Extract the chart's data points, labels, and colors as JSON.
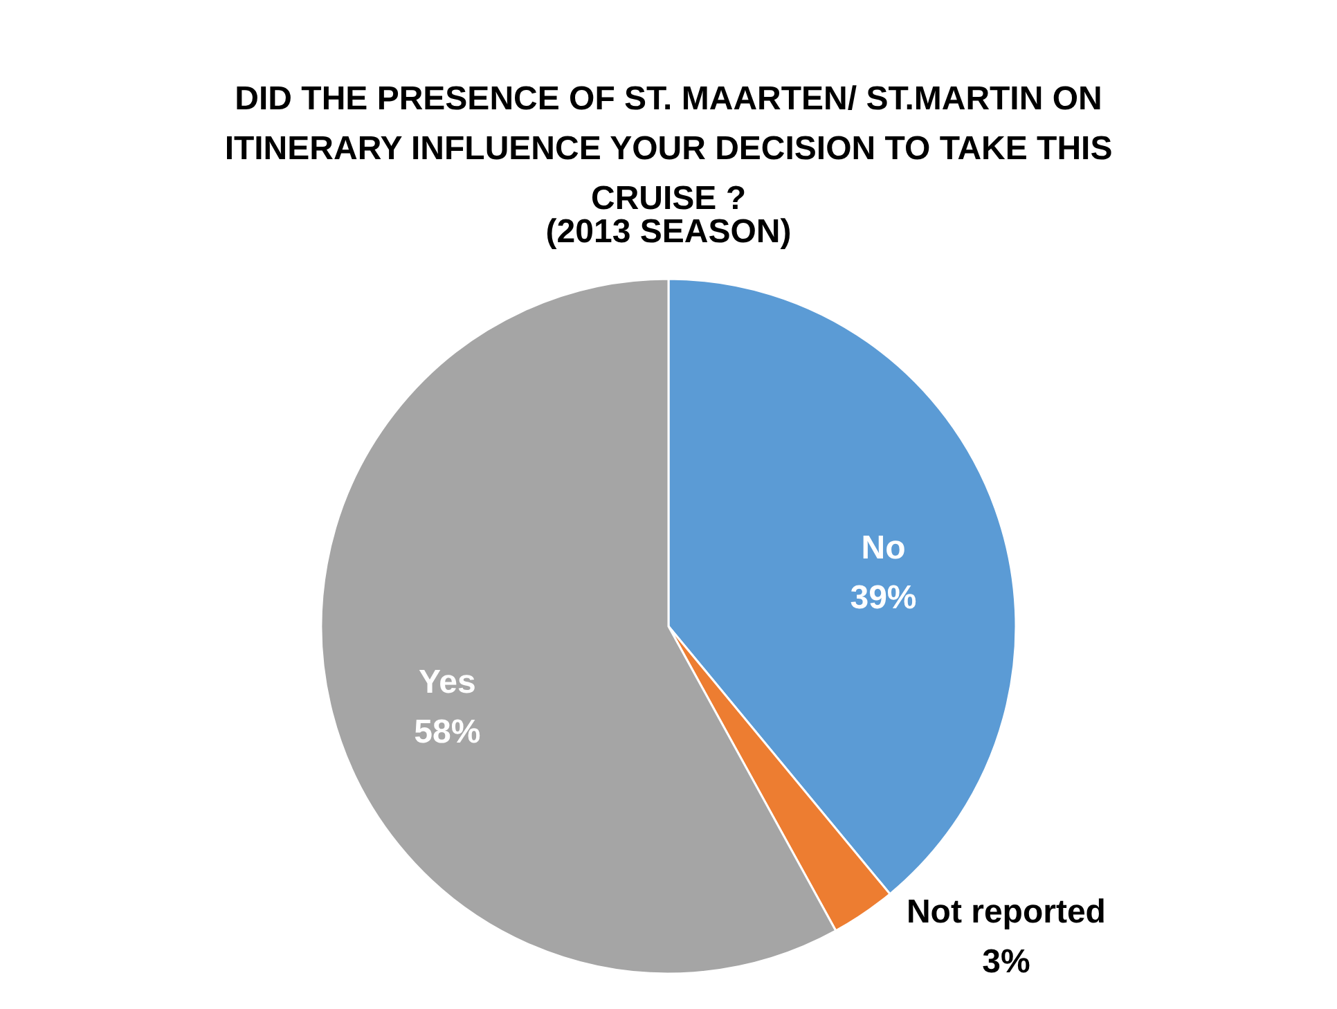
{
  "chart_data": {
    "type": "pie",
    "title": "DID THE PRESENCE OF ST. MAARTEN/ ST.MARTIN ON ITINERARY INFLUENCE YOUR DECISION TO TAKE THIS CRUISE ?",
    "subtitle": "(2013 SEASON)",
    "categories": [
      "No",
      "Not reported",
      "Yes"
    ],
    "values": [
      39,
      3,
      58
    ],
    "colors": [
      "#5b9bd5",
      "#ed7d31",
      "#a5a5a5"
    ],
    "value_labels": [
      "39%",
      "3%",
      "58%"
    ]
  }
}
